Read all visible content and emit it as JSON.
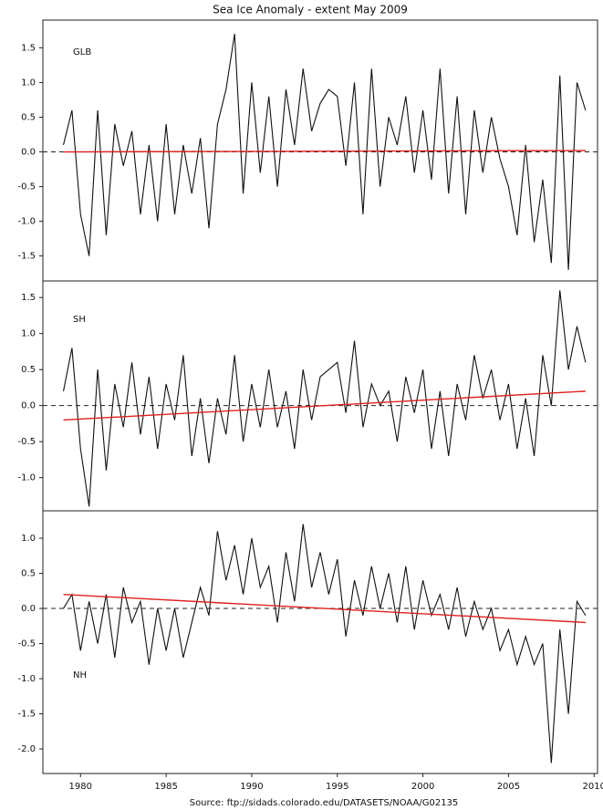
{
  "chart_data": [
    {
      "type": "line",
      "title": "Sea Ice Anomaly - extent May 2009",
      "label": "GLB",
      "x": [
        1979,
        1979.5,
        1980,
        1980.5,
        1981,
        1981.5,
        1982,
        1982.5,
        1983,
        1983.5,
        1984,
        1984.5,
        1985,
        1985.5,
        1986,
        1986.5,
        1987,
        1987.5,
        1988,
        1988.5,
        1989,
        1989.5,
        1990,
        1990.5,
        1991,
        1991.5,
        1992,
        1992.5,
        1993,
        1993.5,
        1994,
        1994.5,
        1995,
        1995.5,
        1996,
        1996.5,
        1997,
        1997.5,
        1998,
        1998.5,
        1999,
        1999.5,
        2000,
        2000.5,
        2001,
        2001.5,
        2002,
        2002.5,
        2003,
        2003.5,
        2004,
        2004.5,
        2005,
        2005.5,
        2006,
        2006.5,
        2007,
        2007.5,
        2008,
        2008.5,
        2009,
        2009.5
      ],
      "series": [
        {
          "color": "#111111",
          "values": [
            0.1,
            0.6,
            -0.9,
            -1.5,
            0.6,
            -1.2,
            0.4,
            -0.2,
            0.3,
            -0.9,
            0.1,
            -1.0,
            0.4,
            -0.9,
            0.1,
            -0.6,
            0.2,
            -1.1,
            0.4,
            0.9,
            1.7,
            -0.6,
            1.0,
            -0.3,
            0.8,
            -0.5,
            0.9,
            0.1,
            1.2,
            0.3,
            0.7,
            0.9,
            0.8,
            -0.2,
            1.0,
            -0.9,
            1.2,
            -0.5,
            0.5,
            0.1,
            0.8,
            -0.3,
            0.6,
            -0.4,
            1.2,
            -0.6,
            0.8,
            -0.9,
            0.6,
            -0.3,
            0.5,
            -0.1,
            -0.5,
            -1.2,
            0.1,
            -1.3,
            -0.4,
            -1.6,
            1.1,
            -1.7,
            1.0,
            0.6
          ]
        },
        {
          "color": "#e02020",
          "x": [
            1979,
            2009.5
          ],
          "values": [
            0.0,
            0.02
          ]
        }
      ],
      "xlim": [
        1977.8,
        2010.2
      ],
      "ylim": [
        -1.86,
        1.9
      ],
      "yticks": [
        -1.5,
        {
          "value": -1,
          "label": "-1.0"
        },
        -0.5,
        {
          "value": 0,
          "label": "0.0"
        },
        0.5,
        {
          "value": 1,
          "label": "1.0"
        },
        1.5
      ],
      "zero_line": true
    },
    {
      "type": "line",
      "label": "SH",
      "x": [
        1979,
        1979.5,
        1980,
        1980.5,
        1981,
        1981.5,
        1982,
        1982.5,
        1983,
        1983.5,
        1984,
        1984.5,
        1985,
        1985.5,
        1986,
        1986.5,
        1987,
        1987.5,
        1988,
        1988.5,
        1989,
        1989.5,
        1990,
        1990.5,
        1991,
        1991.5,
        1992,
        1992.5,
        1993,
        1993.5,
        1994,
        1994.5,
        1995,
        1995.5,
        1996,
        1996.5,
        1997,
        1997.5,
        1998,
        1998.5,
        1999,
        1999.5,
        2000,
        2000.5,
        2001,
        2001.5,
        2002,
        2002.5,
        2003,
        2003.5,
        2004,
        2004.5,
        2005,
        2005.5,
        2006,
        2006.5,
        2007,
        2007.5,
        2008,
        2008.5,
        2009,
        2009.5
      ],
      "series": [
        {
          "color": "#111111",
          "values": [
            0.2,
            0.8,
            -0.6,
            -1.4,
            0.5,
            -0.9,
            0.3,
            -0.3,
            0.6,
            -0.4,
            0.4,
            -0.6,
            0.3,
            -0.2,
            0.7,
            -0.7,
            0.1,
            -0.8,
            0.1,
            -0.4,
            0.7,
            -0.5,
            0.3,
            -0.3,
            0.5,
            -0.3,
            0.2,
            -0.6,
            0.5,
            -0.2,
            0.4,
            0.5,
            0.6,
            -0.1,
            0.9,
            -0.3,
            0.3,
            0.0,
            0.2,
            -0.5,
            0.4,
            -0.1,
            0.5,
            -0.6,
            0.2,
            -0.7,
            0.3,
            -0.2,
            0.7,
            0.1,
            0.5,
            -0.2,
            0.3,
            -0.6,
            0.1,
            -0.7,
            0.7,
            0.0,
            1.6,
            0.5,
            1.1,
            0.6
          ]
        },
        {
          "color": "#e02020",
          "x": [
            1979,
            2009.5
          ],
          "values": [
            -0.2,
            0.2
          ]
        }
      ],
      "xlim": [
        1977.8,
        2010.2
      ],
      "ylim": [
        -1.46,
        1.73
      ],
      "yticks": [
        {
          "value": -1,
          "label": "-1.0"
        },
        -0.5,
        {
          "value": 0,
          "label": "0.0"
        },
        0.5,
        {
          "value": 1,
          "label": "1.0"
        },
        1.5
      ],
      "zero_line": true
    },
    {
      "type": "line",
      "label": "NH",
      "source": "Source: ftp://sidads.colorado.edu/DATASETS/NOAA/G02135",
      "x": [
        1979,
        1979.5,
        1980,
        1980.5,
        1981,
        1981.5,
        1982,
        1982.5,
        1983,
        1983.5,
        1984,
        1984.5,
        1985,
        1985.5,
        1986,
        1986.5,
        1987,
        1987.5,
        1988,
        1988.5,
        1989,
        1989.5,
        1990,
        1990.5,
        1991,
        1991.5,
        1992,
        1992.5,
        1993,
        1993.5,
        1994,
        1994.5,
        1995,
        1995.5,
        1996,
        1996.5,
        1997,
        1997.5,
        1998,
        1998.5,
        1999,
        1999.5,
        2000,
        2000.5,
        2001,
        2001.5,
        2002,
        2002.5,
        2003,
        2003.5,
        2004,
        2004.5,
        2005,
        2005.5,
        2006,
        2006.5,
        2007,
        2007.5,
        2008,
        2008.5,
        2009,
        2009.5
      ],
      "series": [
        {
          "color": "#111111",
          "values": [
            0.0,
            0.2,
            -0.6,
            0.1,
            -0.5,
            0.2,
            -0.7,
            0.3,
            -0.2,
            0.1,
            -0.8,
            0.0,
            -0.6,
            0.0,
            -0.7,
            -0.2,
            0.3,
            -0.1,
            1.1,
            0.4,
            0.9,
            0.2,
            1.0,
            0.3,
            0.6,
            -0.2,
            0.8,
            0.1,
            1.2,
            0.3,
            0.8,
            0.2,
            0.7,
            -0.4,
            0.4,
            -0.1,
            0.6,
            0.0,
            0.5,
            -0.2,
            0.6,
            -0.3,
            0.4,
            -0.1,
            0.2,
            -0.3,
            0.3,
            -0.4,
            0.1,
            -0.3,
            0.0,
            -0.6,
            -0.3,
            -0.8,
            -0.4,
            -0.8,
            -0.5,
            -2.2,
            -0.3,
            -1.5,
            0.1,
            -0.1
          ]
        },
        {
          "color": "#e02020",
          "x": [
            1979,
            2009.5
          ],
          "values": [
            0.2,
            -0.2
          ]
        }
      ],
      "xlim": [
        1977.8,
        2010.2
      ],
      "ylim": [
        -2.35,
        1.39
      ],
      "yticks": [
        {
          "value": -2,
          "label": "-2.0"
        },
        -1.5,
        {
          "value": -1,
          "label": "-1.0"
        },
        -0.5,
        {
          "value": 0,
          "label": "0.0"
        },
        0.5,
        {
          "value": 1,
          "label": "1.0"
        }
      ],
      "xticks": [
        1980,
        1985,
        1990,
        1995,
        2000,
        2005,
        2010
      ],
      "zero_line": true
    }
  ]
}
